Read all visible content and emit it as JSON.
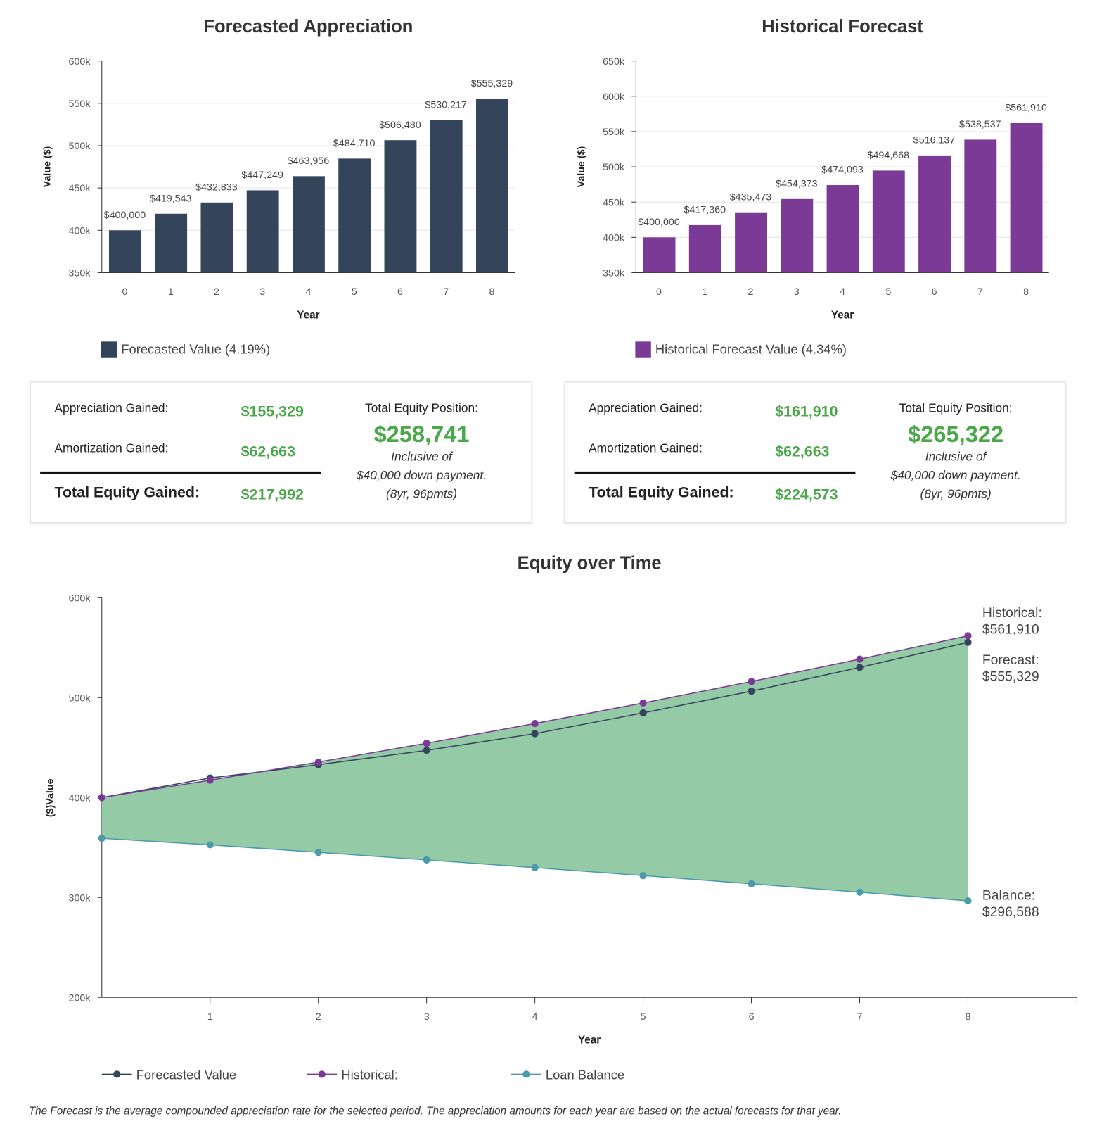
{
  "cards": [
    {
      "appreciation_label": "Appreciation Gained:",
      "appreciation": "$155,329",
      "amortization_label": "Amortization Gained:",
      "amortization": "$62,663",
      "total_label": "Total Equity Gained:",
      "total": "$217,992",
      "position_label": "Total Equity Position:",
      "position": "$258,741",
      "note1": "Inclusive of",
      "note2": "$40,000 down payment.",
      "note3": "(8yr, 96pmts)"
    },
    {
      "appreciation_label": "Appreciation Gained:",
      "appreciation": "$161,910",
      "amortization_label": "Amortization Gained:",
      "amortization": "$62,663",
      "total_label": "Total Equity Gained:",
      "total": "$224,573",
      "position_label": "Total Equity Position:",
      "position": "$265,322",
      "note1": "Inclusive of",
      "note2": "$40,000 down payment.",
      "note3": "(8yr, 96pmts)"
    }
  ],
  "footnote": "The Forecast is the average compounded appreciation rate for the selected period. The appreciation amounts for each year are based on the actual forecasts for that year.",
  "chart_data": [
    {
      "type": "bar",
      "title": "Forecasted Appreciation",
      "xlabel": "Year",
      "ylabel": "Value ($)",
      "ylim": [
        350000,
        600000
      ],
      "yticks": [
        "350k",
        "400k",
        "450k",
        "500k",
        "550k",
        "600k"
      ],
      "grid": true,
      "legend": "bottom-left",
      "categories": [
        "0",
        "1",
        "2",
        "3",
        "4",
        "5",
        "6",
        "7",
        "8"
      ],
      "series": [
        {
          "name": "Forecasted Value (4.19%)",
          "color": "#34455b",
          "values": [
            400000,
            419543,
            432833,
            447249,
            463956,
            484710,
            506480,
            530217,
            555329
          ],
          "labels": [
            "$400,000",
            "$419,543",
            "$432,833",
            "$447,249",
            "$463,956",
            "$484,710",
            "$506,480",
            "$530,217",
            "$555,329"
          ]
        }
      ]
    },
    {
      "type": "bar",
      "title": "Historical Forecast",
      "xlabel": "Year",
      "ylabel": "Value ($)",
      "ylim": [
        350000,
        650000
      ],
      "yticks": [
        "350k",
        "400k",
        "450k",
        "500k",
        "550k",
        "600k",
        "650k"
      ],
      "grid": true,
      "legend": "bottom-left",
      "categories": [
        "0",
        "1",
        "2",
        "3",
        "4",
        "5",
        "6",
        "7",
        "8"
      ],
      "series": [
        {
          "name": "Historical Forecast Value (4.34%)",
          "color": "#7b3a96",
          "values": [
            400000,
            417360,
            435473,
            454373,
            474093,
            494668,
            516137,
            538537,
            561910
          ],
          "labels": [
            "$400,000",
            "$417,360",
            "$435,473",
            "$454,373",
            "$474,093",
            "$494,668",
            "$516,137",
            "$538,537",
            "$561,910"
          ]
        }
      ]
    },
    {
      "type": "line",
      "title": "Equity over Time",
      "xlabel": "Year",
      "ylabel": "($)Value",
      "ylim": [
        200000,
        600000
      ],
      "yticks": [
        "200k",
        "300k",
        "400k",
        "500k",
        "600k"
      ],
      "xticks": [
        "1",
        "2",
        "3",
        "4",
        "5",
        "6",
        "7",
        "8"
      ],
      "x": [
        0,
        1,
        2,
        3,
        4,
        5,
        6,
        7,
        8
      ],
      "legend": "bottom",
      "fill_between": "#94cba6",
      "series": [
        {
          "name": "Forecasted Value",
          "color": "#34455b",
          "values": [
            400000,
            419543,
            432833,
            447249,
            463956,
            484710,
            506480,
            530217,
            555329
          ],
          "end_label": [
            "Forecast:",
            "$555,329"
          ]
        },
        {
          "name": "Historical:",
          "color": "#7b3a96",
          "values": [
            400000,
            417360,
            435473,
            454373,
            474093,
            494668,
            516137,
            538537,
            561910
          ],
          "end_label": [
            "Historical:",
            "$561,910"
          ]
        },
        {
          "name": "Loan Balance",
          "color": "#4a9aaa",
          "values": [
            359251,
            352700,
            345200,
            337600,
            329900,
            321900,
            313700,
            305300,
            296588
          ],
          "end_label": [
            "Balance:",
            "$296,588"
          ]
        }
      ]
    }
  ]
}
